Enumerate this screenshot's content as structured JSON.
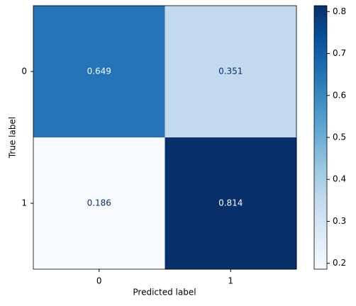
{
  "chart_data": {
    "type": "heatmap",
    "x_label": "Predicted label",
    "y_label": "True label",
    "x_categories": [
      "0",
      "1"
    ],
    "y_categories": [
      "0",
      "1"
    ],
    "values": [
      [
        0.649,
        0.351
      ],
      [
        0.186,
        0.814
      ]
    ],
    "colormap": "Blues",
    "clim": [
      0.186,
      0.814
    ],
    "colorbar_ticks": [
      0.2,
      0.3,
      0.4,
      0.5,
      0.6,
      0.7,
      0.8
    ]
  }
}
